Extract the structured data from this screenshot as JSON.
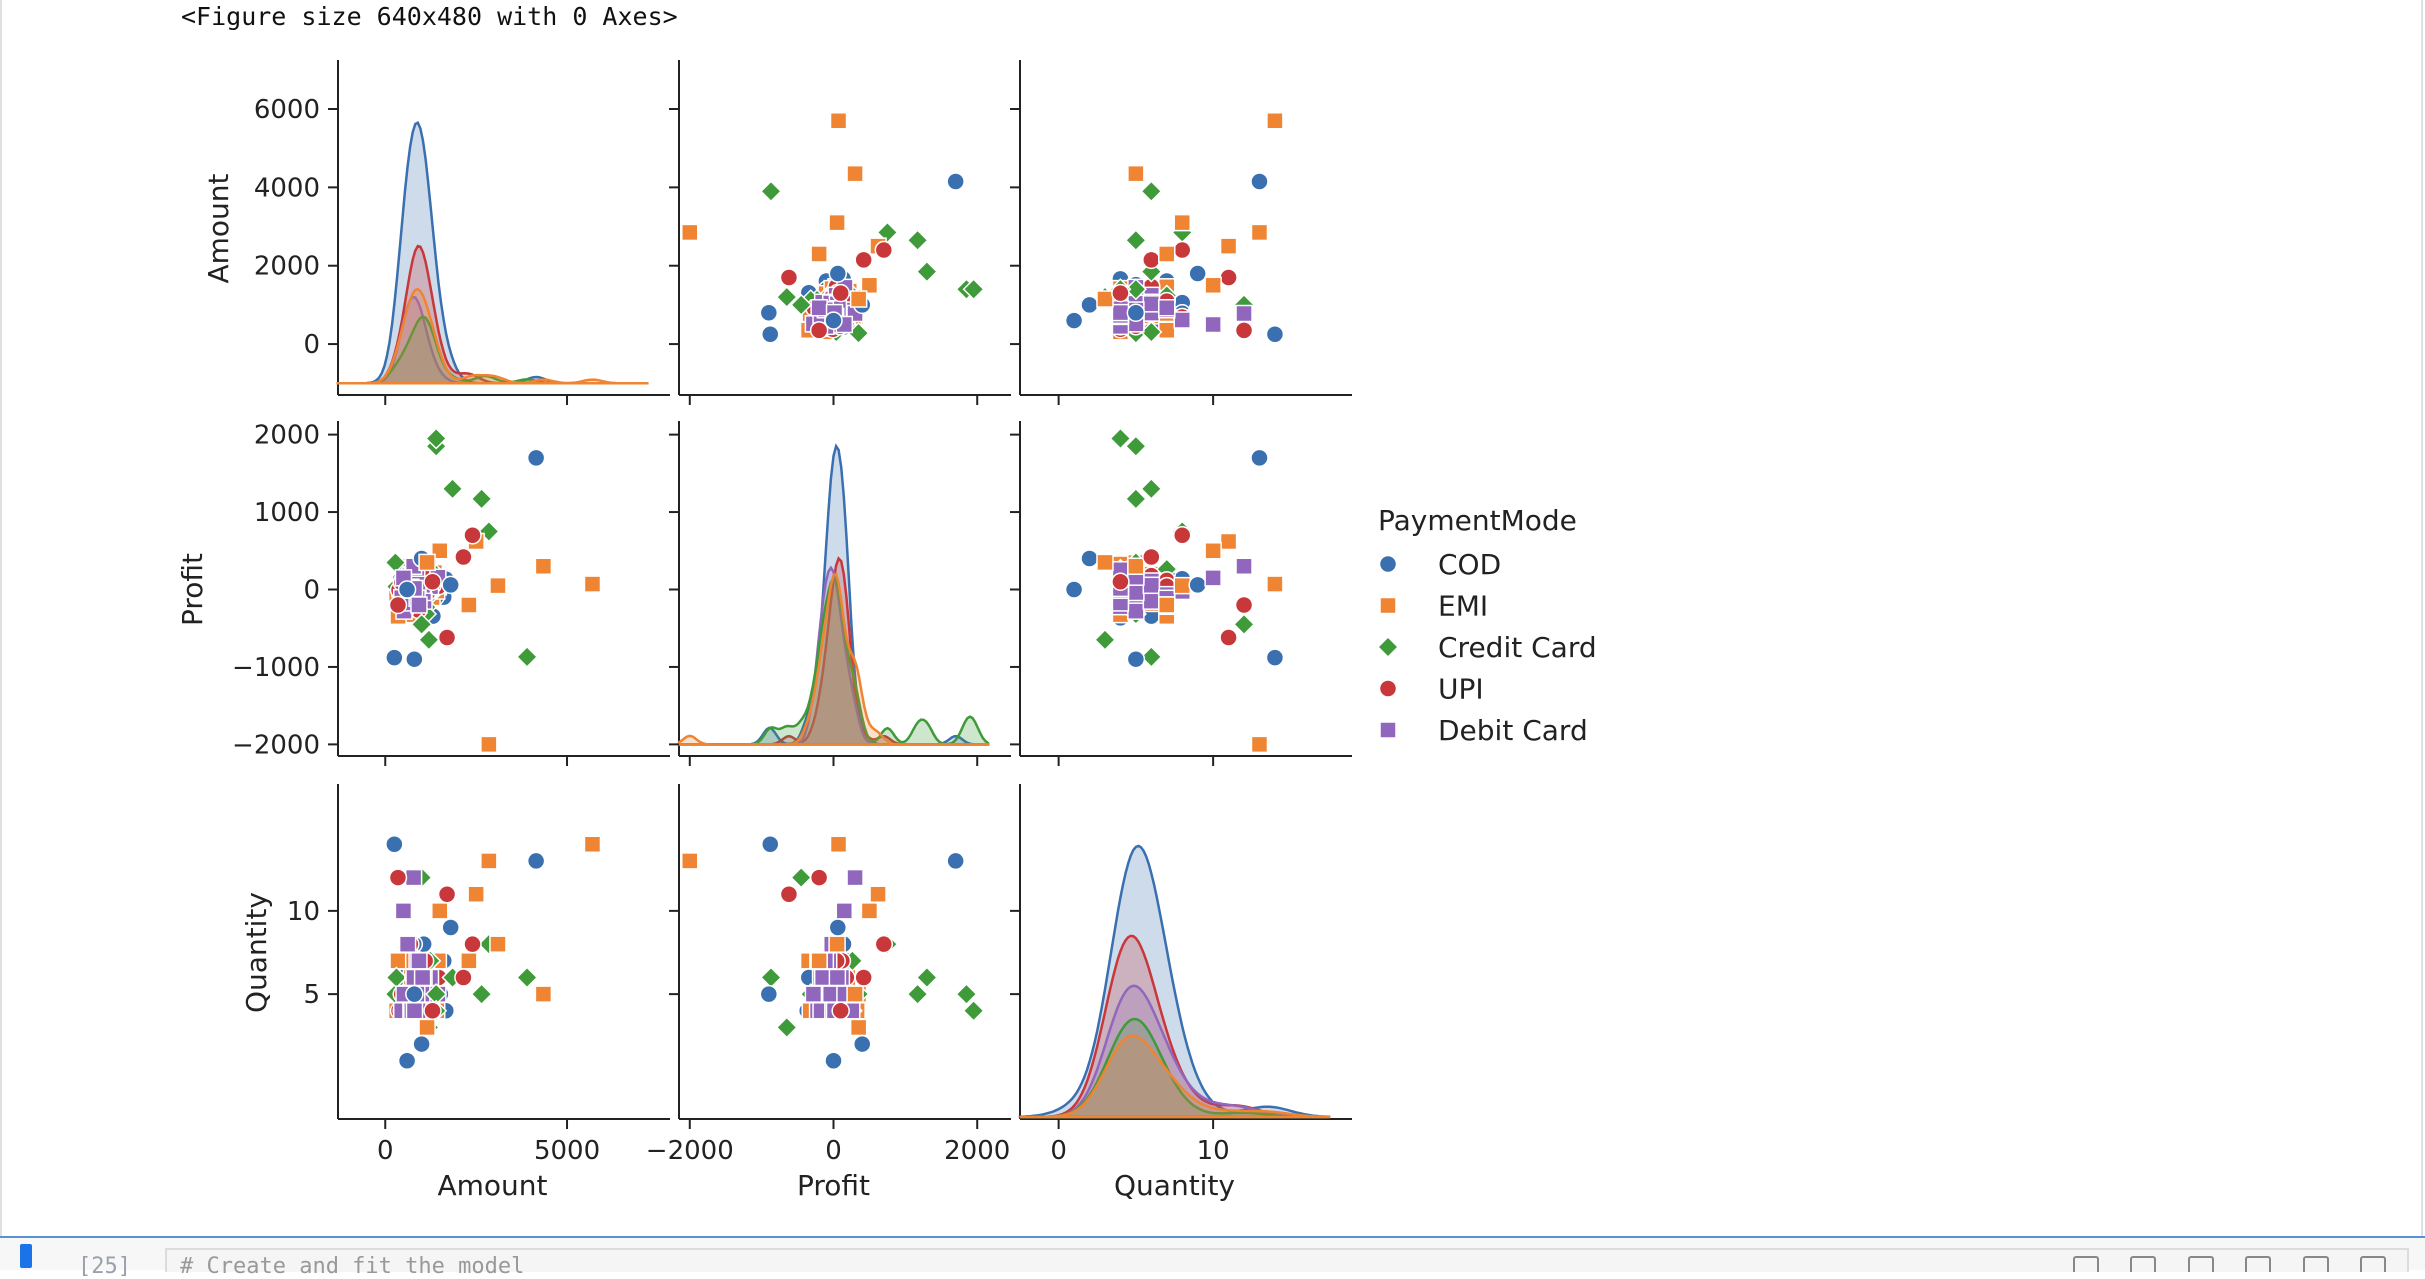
{
  "output_text": "<Figure size 640x480 with 0 Axes>",
  "next_cell": {
    "prompt": "[25]",
    "code_preview": "# Create and fit the model"
  },
  "chart_data": {
    "type": "pairplot",
    "variables": [
      "Amount",
      "Profit",
      "Quantity"
    ],
    "hue": "PaymentMode",
    "legend": {
      "title": "PaymentMode",
      "placement": "right",
      "entries": [
        {
          "label": "COD",
          "color": "#3a6fb0",
          "marker": "circle"
        },
        {
          "label": "EMI",
          "color": "#ef8432",
          "marker": "square"
        },
        {
          "label": "Credit Card",
          "color": "#3f9a3a",
          "marker": "diamond"
        },
        {
          "label": "UPI",
          "color": "#c8373a",
          "marker": "circle"
        },
        {
          "label": "Debit Card",
          "color": "#9166bd",
          "marker": "square"
        }
      ]
    },
    "axes": {
      "Amount": {
        "label": "Amount",
        "range": [
          -1300,
          7200
        ],
        "ticks": [
          0,
          2000,
          4000,
          6000
        ],
        "bottom_ticks": [
          0,
          5000
        ]
      },
      "Profit": {
        "label": "Profit",
        "range": [
          -2150,
          2150
        ],
        "ticks": [
          -2000,
          -1000,
          0,
          1000,
          2000
        ],
        "bottom_ticks": [
          -2000,
          0,
          2000
        ]
      },
      "Quantity": {
        "label": "Quantity",
        "range": [
          -2.5,
          17.5
        ],
        "ticks": [
          5,
          10
        ],
        "bottom_ticks": [
          0,
          10
        ]
      }
    },
    "diag_peaks": {
      "Amount": {
        "COD": 5650,
        "UPI": 2500,
        "EMI": 1400,
        "Debit Card": 1200,
        "Credit Card": 700
      },
      "Profit": {
        "COD": 1850,
        "UPI": 400,
        "Debit Card": 280,
        "EMI": 200,
        "Credit Card": 150
      },
      "Quantity": {
        "COD": 13.9,
        "UPI": 8.5,
        "Debit Card": 5.5,
        "Credit Card": 3.5,
        "EMI": 2.5
      }
    },
    "notable_points": [
      {
        "mode": "EMI",
        "Amount": 5700,
        "Profit": 70,
        "Quantity": 14
      },
      {
        "mode": "COD",
        "Amount": 4150,
        "Profit": 1700,
        "Quantity": 13
      },
      {
        "mode": "EMI",
        "Amount": 4350,
        "Profit": 300,
        "Quantity": 5
      },
      {
        "mode": "Credit Card",
        "Amount": 3900,
        "Profit": -870,
        "Quantity": 6
      },
      {
        "mode": "EMI",
        "Amount": 2850,
        "Profit": -2000,
        "Quantity": 13
      },
      {
        "mode": "Credit Card",
        "Amount": 1400,
        "Profit": 1850,
        "Quantity": 5
      },
      {
        "mode": "Credit Card",
        "Amount": 2850,
        "Profit": 750,
        "Quantity": 8
      },
      {
        "mode": "Credit Card",
        "Amount": 2650,
        "Profit": 1170,
        "Quantity": 5
      },
      {
        "mode": "Credit Card",
        "Amount": 1850,
        "Profit": 1300,
        "Quantity": 6
      },
      {
        "mode": "Credit Card",
        "Amount": 1400,
        "Profit": 1950,
        "Quantity": 4
      },
      {
        "mode": "COD",
        "Amount": 250,
        "Profit": -880,
        "Quantity": 14
      },
      {
        "mode": "COD",
        "Amount": 800,
        "Profit": -900,
        "Quantity": 5
      },
      {
        "mode": "Credit Card",
        "Amount": 1200,
        "Profit": -650,
        "Quantity": 3
      },
      {
        "mode": "EMI",
        "Amount": 3100,
        "Profit": 50,
        "Quantity": 8
      },
      {
        "mode": "EMI",
        "Amount": 2500,
        "Profit": 620,
        "Quantity": 11
      },
      {
        "mode": "UPI",
        "Amount": 1700,
        "Profit": -620,
        "Quantity": 11
      },
      {
        "mode": "UPI",
        "Amount": 2400,
        "Profit": 700,
        "Quantity": 8
      },
      {
        "mode": "UPI",
        "Amount": 2150,
        "Profit": 420,
        "Quantity": 6
      },
      {
        "mode": "COD",
        "Amount": 1800,
        "Profit": 60,
        "Quantity": 9
      },
      {
        "mode": "EMI",
        "Amount": 2300,
        "Profit": -200,
        "Quantity": 7
      },
      {
        "mode": "EMI",
        "Amount": 1500,
        "Profit": 500,
        "Quantity": 10
      },
      {
        "mode": "Credit Card",
        "Amount": 1000,
        "Profit": -450,
        "Quantity": 12
      },
      {
        "mode": "Debit Card",
        "Amount": 780,
        "Profit": 300,
        "Quantity": 12
      },
      {
        "mode": "Debit Card",
        "Amount": 500,
        "Profit": 150,
        "Quantity": 10
      },
      {
        "mode": "UPI",
        "Amount": 350,
        "Profit": -200,
        "Quantity": 12
      },
      {
        "mode": "COD",
        "Amount": 600,
        "Profit": 0,
        "Quantity": 1
      },
      {
        "mode": "COD",
        "Amount": 1000,
        "Profit": 400,
        "Quantity": 2
      },
      {
        "mode": "EMI",
        "Amount": 1150,
        "Profit": 350,
        "Quantity": 3
      },
      {
        "mode": "UPI",
        "Amount": 1300,
        "Profit": 100,
        "Quantity": 4
      }
    ]
  }
}
